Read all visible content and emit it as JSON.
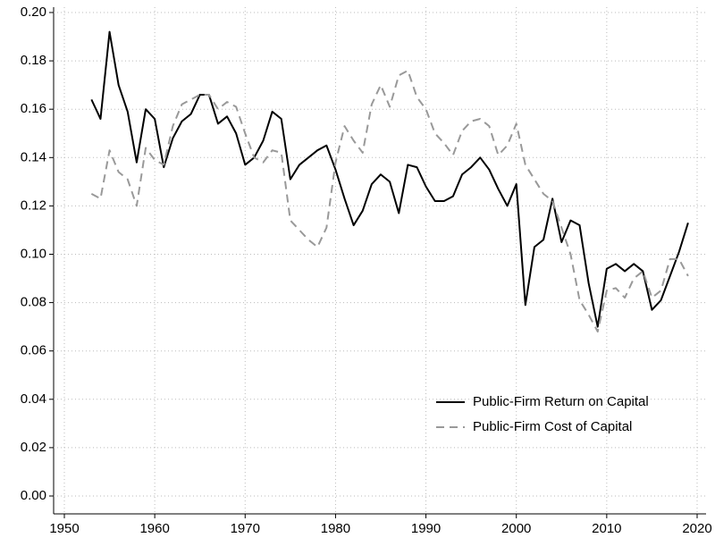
{
  "chart_data": {
    "type": "line",
    "x": [
      1953,
      1954,
      1955,
      1956,
      1957,
      1958,
      1959,
      1960,
      1961,
      1962,
      1963,
      1964,
      1965,
      1966,
      1967,
      1968,
      1969,
      1970,
      1971,
      1972,
      1973,
      1974,
      1975,
      1976,
      1977,
      1978,
      1979,
      1980,
      1981,
      1982,
      1983,
      1984,
      1985,
      1986,
      1987,
      1988,
      1989,
      1990,
      1991,
      1992,
      1993,
      1994,
      1995,
      1996,
      1997,
      1998,
      1999,
      2000,
      2001,
      2002,
      2003,
      2004,
      2005,
      2006,
      2007,
      2008,
      2009,
      2010,
      2011,
      2012,
      2013,
      2014,
      2015,
      2016,
      2017,
      2018,
      2019
    ],
    "series": [
      {
        "name": "Public-Firm Return on Capital",
        "color": "#000000",
        "dash": "solid",
        "values": [
          0.164,
          0.156,
          0.192,
          0.17,
          0.159,
          0.138,
          0.16,
          0.156,
          0.136,
          0.148,
          0.155,
          0.158,
          0.166,
          0.166,
          0.154,
          0.157,
          0.15,
          0.137,
          0.14,
          0.147,
          0.159,
          0.156,
          0.131,
          0.137,
          0.14,
          0.143,
          0.145,
          0.135,
          0.123,
          0.112,
          0.118,
          0.129,
          0.133,
          0.13,
          0.117,
          0.137,
          0.136,
          0.128,
          0.122,
          0.122,
          0.124,
          0.133,
          0.136,
          0.14,
          0.135,
          0.127,
          0.12,
          0.129,
          0.079,
          0.103,
          0.106,
          0.123,
          0.105,
          0.114,
          0.112,
          0.088,
          0.07,
          0.094,
          0.096,
          0.093,
          0.096,
          0.093,
          0.077,
          0.081,
          0.091,
          0.101,
          0.113
        ]
      },
      {
        "name": "Public-Firm Cost of Capital",
        "color": "#999999",
        "dash": "dashed",
        "values": [
          0.125,
          0.123,
          0.143,
          0.134,
          0.131,
          0.12,
          0.144,
          0.139,
          0.137,
          0.153,
          0.162,
          0.164,
          0.166,
          0.166,
          0.16,
          0.163,
          0.161,
          0.15,
          0.14,
          0.138,
          0.143,
          0.142,
          0.114,
          0.11,
          0.106,
          0.103,
          0.111,
          0.138,
          0.153,
          0.147,
          0.142,
          0.162,
          0.17,
          0.161,
          0.174,
          0.176,
          0.165,
          0.16,
          0.15,
          0.146,
          0.141,
          0.151,
          0.155,
          0.156,
          0.153,
          0.141,
          0.145,
          0.154,
          0.137,
          0.131,
          0.125,
          0.122,
          0.111,
          0.1,
          0.081,
          0.075,
          0.068,
          0.085,
          0.086,
          0.082,
          0.09,
          0.093,
          0.082,
          0.085,
          0.098,
          0.098,
          0.091
        ]
      }
    ],
    "xlim": [
      1950,
      2020
    ],
    "xticks": [
      1950,
      1960,
      1970,
      1980,
      1990,
      2000,
      2010,
      2020
    ],
    "ylim": [
      0,
      0.2
    ],
    "yticks": [
      {
        "value": 0,
        "label": "0.00"
      },
      0.02,
      0.04,
      0.06,
      0.08,
      {
        "value": 0.1,
        "label": "0.10"
      },
      0.12,
      0.14,
      0.16,
      0.18,
      {
        "value": 0.2,
        "label": "0.20"
      }
    ],
    "grid": true,
    "legend": "lower right"
  }
}
